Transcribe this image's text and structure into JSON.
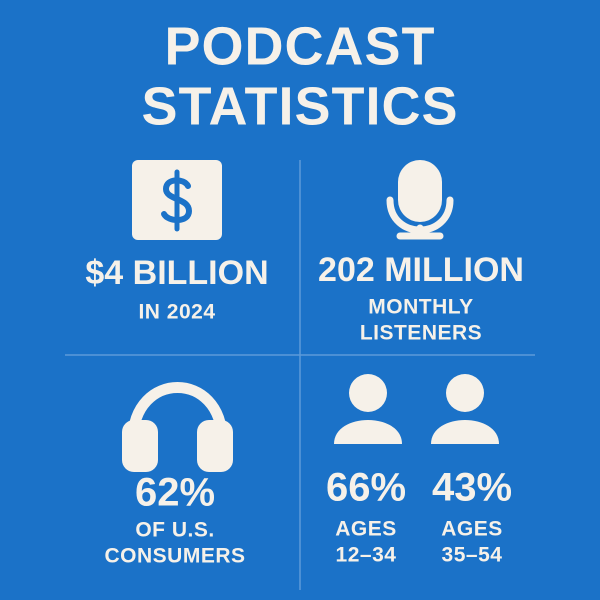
{
  "title": [
    "PODCAST",
    "STATISTICS"
  ],
  "stats": [
    {
      "value": "$4 BILLION",
      "label": [
        "IN 2024"
      ]
    },
    {
      "value": "202 MILLION",
      "label": [
        "MONTHLY",
        "LISTENERS"
      ]
    },
    {
      "value": "62%",
      "label": [
        "OF U.S.",
        "CONSUMERS"
      ]
    },
    {
      "value": "66%",
      "label": [
        "AGES",
        "12–34"
      ]
    },
    {
      "value": "43%",
      "label": [
        "AGES",
        "35–54"
      ]
    }
  ]
}
